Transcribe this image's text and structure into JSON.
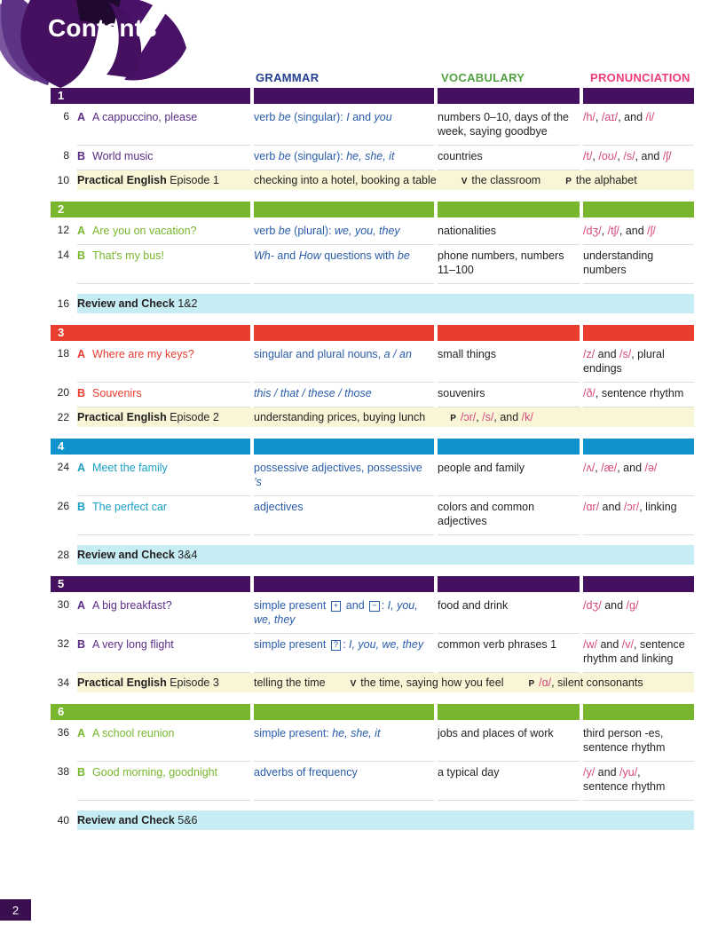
{
  "page": {
    "title": "Contents",
    "footer_page_number": "2"
  },
  "columns": {
    "grammar": "GRAMMAR",
    "vocabulary": "VOCABULARY",
    "pronunciation": "PRONUNCIATION"
  },
  "colors": {
    "purple_bar": "#451060",
    "green_bar": "#78b72d",
    "red_bar": "#e93d30",
    "blue_bar": "#0f93cc",
    "purple_title": "#5c2d87",
    "green_title": "#78b72d",
    "red_title": "#e93d30",
    "cyan_title": "#1b9fc4",
    "grammar_header": "#25408f",
    "vocabulary_header": "#52a142",
    "pronunciation_header": "#ef3e76",
    "grammar_text": "#2a5caa",
    "phonetic_pink": "#d6487e",
    "practical_bg": "#f8f6d6",
    "review_bg": "#c6ecf4",
    "footer_bg": "#3a0f50"
  },
  "labels": {
    "vocab_marker": "V",
    "pron_marker": "P"
  },
  "sections": [
    {
      "number": "1",
      "color": "#451060",
      "title_color": "#5c2d87",
      "rows": [
        {
          "type": "lesson",
          "num": "6",
          "letter": "A",
          "title": "A cappuccino, please",
          "grammar": "verb *be* (singular): *I* and *you*",
          "vocab": "numbers 0–10, days of the week, saying goodbye",
          "pron": "/h/, /aɪ/, and /i/"
        },
        {
          "type": "lesson",
          "num": "8",
          "letter": "B",
          "title": "World music",
          "grammar": "verb *be* (singular): *he, she, it*",
          "vocab": "countries",
          "pron": "/t/, /oʊ/, /s/, and /ʃ/"
        },
        {
          "type": "practical",
          "num": "10",
          "title": "Practical English",
          "episode": "Episode 1",
          "main": "checking into a hotel, booking a table",
          "v": "the classroom",
          "p": "the alphabet"
        }
      ]
    },
    {
      "number": "2",
      "color": "#78b72d",
      "title_color": "#78b72d",
      "rows": [
        {
          "type": "lesson",
          "num": "12",
          "letter": "A",
          "title": "Are you on vacation?",
          "grammar": "verb *be* (plural): *we, you, they*",
          "vocab": "nationalities",
          "pron": "/dʒ/, /tʃ/, and /ʃ/"
        },
        {
          "type": "lesson",
          "num": "14",
          "letter": "B",
          "title": "That's my bus!",
          "grammar": "*Wh-* and *How* questions with *be*",
          "vocab": "phone numbers, numbers 11–100",
          "pron": "understanding numbers"
        },
        {
          "type": "review",
          "num": "16",
          "title": "Review and Check",
          "rest": "1&2"
        }
      ]
    },
    {
      "number": "3",
      "color": "#e93d30",
      "title_color": "#e93d30",
      "rows": [
        {
          "type": "lesson",
          "num": "18",
          "letter": "A",
          "title": "Where are my keys?",
          "grammar": "singular and plural nouns, *a / an*",
          "vocab": "small things",
          "pron": "/z/ and /s/, plural endings"
        },
        {
          "type": "lesson",
          "num": "20",
          "letter": "B",
          "title": "Souvenirs",
          "grammar": "*this / that / these / those*",
          "vocab": "souvenirs",
          "pron": "/ð/, sentence rhythm"
        },
        {
          "type": "practical",
          "num": "22",
          "title": "Practical English",
          "episode": "Episode 2",
          "main": "understanding prices, buying lunch",
          "p": "/ɔr/, /s/, and /k/"
        }
      ]
    },
    {
      "number": "4",
      "color": "#0f93cc",
      "title_color": "#1b9fc4",
      "rows": [
        {
          "type": "lesson",
          "num": "24",
          "letter": "A",
          "title": "Meet the family",
          "grammar": "possessive adjectives, possessive *’s*",
          "vocab": "people and family",
          "pron": "/ʌ/, /æ/, and /ə/"
        },
        {
          "type": "lesson",
          "num": "26",
          "letter": "B",
          "title": "The perfect car",
          "grammar": "adjectives",
          "vocab": "colors and common adjectives",
          "pron": "/ɑr/ and /ɔr/, linking"
        },
        {
          "type": "review",
          "num": "28",
          "title": "Review and Check",
          "rest": "3&4"
        }
      ]
    },
    {
      "number": "5",
      "color": "#451060",
      "title_color": "#5c2d87",
      "rows": [
        {
          "type": "lesson",
          "num": "30",
          "letter": "A",
          "title": "A big breakfast?",
          "grammar": "simple present [+] and [−]: *I, you, we, they*",
          "vocab": "food and drink",
          "pron": "/dʒ/ and /g/"
        },
        {
          "type": "lesson",
          "num": "32",
          "letter": "B",
          "title": "A very long flight",
          "grammar": "simple present [?]: *I, you, we, they*",
          "vocab": "common verb phrases 1",
          "pron": "/w/ and /v/, sentence rhythm and linking"
        },
        {
          "type": "practical",
          "num": "34",
          "title": "Practical English",
          "episode": "Episode 3",
          "main": "telling the time",
          "v": "the time, saying how you feel",
          "p": "/ɑ/, silent consonants"
        }
      ]
    },
    {
      "number": "6",
      "color": "#78b72d",
      "title_color": "#78b72d",
      "rows": [
        {
          "type": "lesson",
          "num": "36",
          "letter": "A",
          "title": "A school reunion",
          "grammar": "simple present: *he, she, it*",
          "vocab": "jobs and places of work",
          "pron": "third person -es, sentence rhythm"
        },
        {
          "type": "lesson",
          "num": "38",
          "letter": "B",
          "title": "Good morning, goodnight",
          "grammar": "adverbs of frequency",
          "vocab": "a typical day",
          "pron": "/y/ and /yu/, sentence rhythm"
        },
        {
          "type": "review",
          "num": "40",
          "title": "Review and Check",
          "rest": "5&6"
        }
      ]
    }
  ]
}
